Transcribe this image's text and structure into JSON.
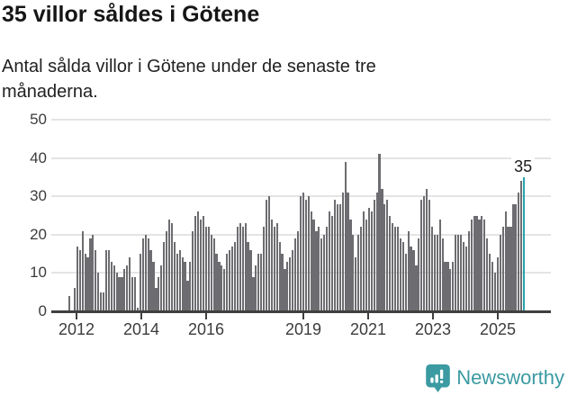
{
  "header": {
    "title": "35 villor såldes i Götene",
    "subtitle": "Antal sålda villor i Götene under de senaste tre månaderna."
  },
  "chart_data": {
    "type": "bar",
    "title": "35 villor såldes i Götene",
    "subtitle": "Antal sålda villor i Götene under de senaste tre månaderna.",
    "ylim": [
      0,
      50
    ],
    "y_ticks": [
      0,
      10,
      20,
      30,
      40,
      50
    ],
    "x_ticks": [
      "2012",
      "2014",
      "2016",
      "2019",
      "2021",
      "2023",
      "2025"
    ],
    "grid": "horizontal",
    "first_bar_period": "late 2011",
    "last_bar_period": "late 2025",
    "bar_interval": "monthly rolling 3-month total",
    "values": [
      4,
      0,
      6,
      17,
      16,
      21,
      15,
      14,
      19,
      20,
      16,
      10,
      5,
      5,
      16,
      16,
      13,
      12,
      10,
      9,
      9,
      11,
      12,
      14,
      9,
      9,
      1,
      15,
      19,
      20,
      19,
      16,
      13,
      6,
      9,
      12,
      18,
      21,
      24,
      23,
      18,
      15,
      16,
      14,
      13,
      8,
      13,
      21,
      25,
      26,
      24,
      25,
      22,
      22,
      20,
      19,
      15,
      13,
      12,
      11,
      15,
      16,
      17,
      18,
      22,
      23,
      22,
      23,
      18,
      16,
      9,
      12,
      15,
      15,
      22,
      29,
      30,
      24,
      22,
      23,
      18,
      15,
      11,
      13,
      14,
      16,
      19,
      21,
      30,
      31,
      29,
      30,
      26,
      24,
      21,
      22,
      19,
      20,
      22,
      26,
      25,
      29,
      28,
      28,
      31,
      39,
      31,
      24,
      20,
      14,
      20,
      22,
      26,
      24,
      27,
      26,
      29,
      31,
      41,
      32,
      28,
      29,
      25,
      23,
      22,
      22,
      19,
      18,
      15,
      21,
      17,
      16,
      12,
      19,
      29,
      30,
      32,
      29,
      22,
      20,
      20,
      24,
      19,
      13,
      13,
      11,
      13,
      20,
      20,
      20,
      18,
      17,
      21,
      24,
      25,
      25,
      24,
      25,
      24,
      19,
      15,
      13,
      10,
      14,
      20,
      22,
      26,
      22,
      22,
      28,
      28,
      31,
      34,
      35
    ],
    "highlight": {
      "index": "last",
      "value": 35,
      "label": "35"
    },
    "colors": {
      "bar": "#6d6d71",
      "highlight_bar": "#2aa3ab",
      "gridline": "#e4e4e4",
      "axis": "#3f3f3f"
    }
  },
  "footer": {
    "brand": "Newsworthy",
    "brand_color": "#3b9aa2"
  }
}
